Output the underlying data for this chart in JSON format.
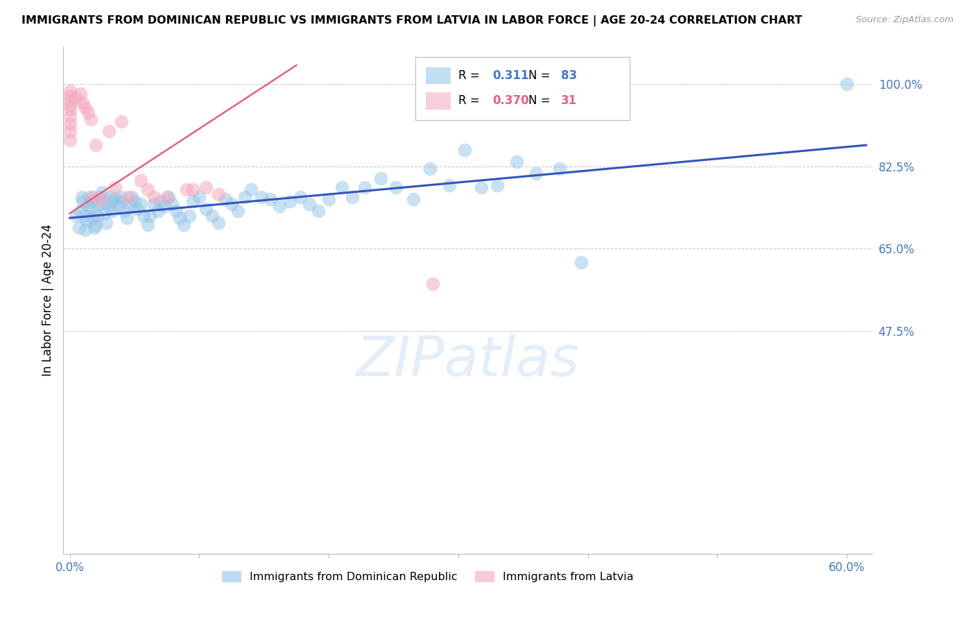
{
  "title": "IMMIGRANTS FROM DOMINICAN REPUBLIC VS IMMIGRANTS FROM LATVIA IN LABOR FORCE | AGE 20-24 CORRELATION CHART",
  "source": "Source: ZipAtlas.com",
  "ylabel": "In Labor Force | Age 20-24",
  "xlim": [
    -0.005,
    0.62
  ],
  "ylim": [
    0.0,
    1.08
  ],
  "xticks": [
    0.0,
    0.1,
    0.2,
    0.3,
    0.4,
    0.5,
    0.6
  ],
  "xticklabels": [
    "0.0%",
    "",
    "",
    "",
    "",
    "",
    "60.0%"
  ],
  "yticks": [
    0.0,
    0.475,
    0.65,
    0.825,
    1.0
  ],
  "yticklabels": [
    "",
    "47.5%",
    "65.0%",
    "82.5%",
    "100.0%"
  ],
  "grid_color": "#cccccc",
  "axis_color": "#bbbbbb",
  "blue_color": "#93c4e8",
  "pink_color": "#f4a8bc",
  "trend_blue": "#3355bb",
  "trend_pink": "#e8607a",
  "text_color": "#4477cc",
  "watermark": "ZIPatlas",
  "legend_R_blue": "0.311",
  "legend_N_blue": "83",
  "legend_R_pink": "0.370",
  "legend_N_pink": "31",
  "legend_label_blue": "Immigrants from Dominican Republic",
  "legend_label_pink": "Immigrants from Latvia",
  "blue_trend_x0": 0.0,
  "blue_trend_y0": 0.715,
  "blue_trend_x1": 0.615,
  "blue_trend_y1": 0.87,
  "pink_trend_x0": 0.0,
  "pink_trend_y0": 0.725,
  "pink_trend_x1": 0.175,
  "pink_trend_y1": 1.04,
  "blue_x": [
    0.005,
    0.007,
    0.008,
    0.009,
    0.01,
    0.011,
    0.012,
    0.013,
    0.014,
    0.015,
    0.016,
    0.017,
    0.018,
    0.019,
    0.02,
    0.021,
    0.022,
    0.023,
    0.025,
    0.026,
    0.027,
    0.028,
    0.03,
    0.031,
    0.032,
    0.033,
    0.035,
    0.037,
    0.039,
    0.04,
    0.042,
    0.044,
    0.046,
    0.048,
    0.05,
    0.052,
    0.055,
    0.057,
    0.06,
    0.062,
    0.065,
    0.068,
    0.07,
    0.073,
    0.076,
    0.079,
    0.082,
    0.085,
    0.088,
    0.092,
    0.095,
    0.1,
    0.105,
    0.11,
    0.115,
    0.12,
    0.125,
    0.13,
    0.135,
    0.14,
    0.148,
    0.155,
    0.162,
    0.17,
    0.178,
    0.185,
    0.192,
    0.2,
    0.21,
    0.218,
    0.228,
    0.24,
    0.252,
    0.265,
    0.278,
    0.293,
    0.305,
    0.318,
    0.33,
    0.345,
    0.36,
    0.378,
    0.395,
    0.6
  ],
  "blue_y": [
    0.72,
    0.695,
    0.73,
    0.76,
    0.75,
    0.72,
    0.69,
    0.71,
    0.74,
    0.76,
    0.75,
    0.735,
    0.715,
    0.695,
    0.7,
    0.72,
    0.745,
    0.76,
    0.77,
    0.745,
    0.725,
    0.705,
    0.74,
    0.76,
    0.75,
    0.73,
    0.755,
    0.74,
    0.76,
    0.75,
    0.73,
    0.715,
    0.74,
    0.76,
    0.75,
    0.735,
    0.745,
    0.72,
    0.7,
    0.72,
    0.745,
    0.73,
    0.75,
    0.74,
    0.76,
    0.745,
    0.73,
    0.715,
    0.7,
    0.72,
    0.75,
    0.76,
    0.735,
    0.72,
    0.705,
    0.755,
    0.745,
    0.73,
    0.76,
    0.775,
    0.76,
    0.755,
    0.74,
    0.75,
    0.76,
    0.745,
    0.73,
    0.755,
    0.78,
    0.76,
    0.78,
    0.8,
    0.78,
    0.755,
    0.82,
    0.785,
    0.86,
    0.78,
    0.785,
    0.835,
    0.81,
    0.82,
    0.62,
    1.0
  ],
  "pink_x": [
    0.0,
    0.0,
    0.0,
    0.0,
    0.0,
    0.0,
    0.0,
    0.0,
    0.0,
    0.005,
    0.008,
    0.01,
    0.012,
    0.014,
    0.016,
    0.018,
    0.02,
    0.025,
    0.03,
    0.035,
    0.04,
    0.045,
    0.055,
    0.06,
    0.065,
    0.075,
    0.09,
    0.095,
    0.105,
    0.115,
    0.28
  ],
  "pink_y": [
    0.985,
    0.975,
    0.965,
    0.955,
    0.945,
    0.93,
    0.915,
    0.9,
    0.88,
    0.97,
    0.98,
    0.96,
    0.95,
    0.94,
    0.925,
    0.76,
    0.87,
    0.755,
    0.9,
    0.78,
    0.92,
    0.76,
    0.795,
    0.775,
    0.76,
    0.76,
    0.775,
    0.775,
    0.78,
    0.765,
    0.575
  ]
}
